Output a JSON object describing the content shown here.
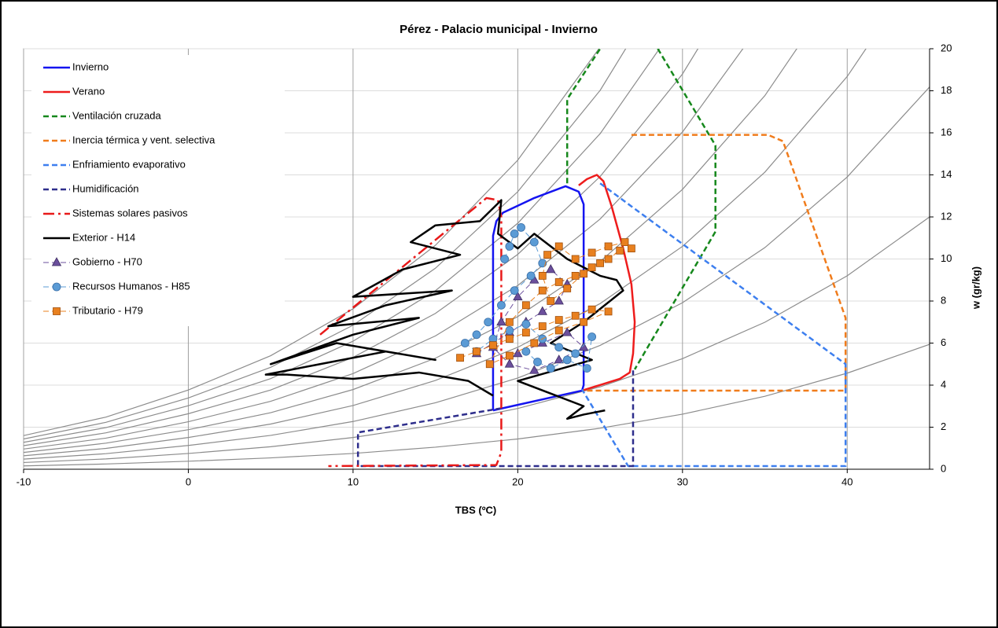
{
  "chart_data": {
    "type": "line",
    "title": "Pérez - Palacio municipal - Invierno",
    "x_label": "TBS (ºC)",
    "y_label": "w (gr/kg)",
    "xlim": [
      -10,
      45
    ],
    "xticks": [
      -10,
      0,
      10,
      20,
      30,
      40
    ],
    "ylim": [
      0,
      20
    ],
    "yticks": [
      0,
      2,
      4,
      6,
      8,
      10,
      12,
      14,
      16,
      18,
      20
    ],
    "grid": true,
    "legend": "upper left",
    "rh_curves": {
      "color": "#8c8c8c",
      "x": [
        -10,
        -5,
        0,
        5,
        10,
        15,
        20,
        25,
        30,
        35,
        40,
        45
      ],
      "values": [
        [
          0.16,
          0.25,
          0.38,
          0.54,
          0.75,
          1.05,
          1.44,
          1.95,
          2.62,
          3.47,
          4.57,
          5.94
        ],
        [
          0.32,
          0.49,
          0.75,
          1.07,
          1.51,
          2.1,
          2.89,
          3.92,
          5.26,
          6.99,
          9.2,
          12.0
        ],
        [
          0.48,
          0.74,
          1.13,
          1.61,
          2.27,
          3.16,
          4.34,
          5.89,
          7.92,
          10.54,
          13.9,
          18.18
        ],
        [
          0.64,
          0.99,
          1.51,
          2.15,
          3.03,
          4.22,
          5.8,
          7.88,
          10.6,
          14.13,
          18.68,
          24.48
        ],
        [
          0.8,
          1.24,
          1.88,
          2.69,
          3.79,
          5.28,
          7.26,
          9.88,
          13.31,
          17.77,
          23.52,
          null
        ],
        [
          0.96,
          1.48,
          2.26,
          3.23,
          4.55,
          6.34,
          8.74,
          11.9,
          16.04,
          21.44,
          null,
          null
        ],
        [
          1.12,
          1.73,
          2.64,
          3.77,
          5.32,
          7.41,
          10.22,
          13.92,
          18.8,
          25.2,
          null,
          null
        ],
        [
          1.28,
          1.98,
          3.02,
          4.31,
          6.09,
          8.49,
          11.7,
          15.96,
          21.57,
          null,
          null,
          null
        ],
        [
          1.44,
          2.23,
          3.39,
          4.85,
          6.85,
          9.56,
          13.2,
          18.02,
          24.4,
          null,
          null,
          null
        ],
        [
          1.6,
          2.48,
          3.77,
          5.4,
          7.63,
          10.65,
          14.7,
          20.08,
          null,
          null,
          null,
          null
        ]
      ]
    },
    "series": [
      {
        "name": "Invierno",
        "color": "#1414f0",
        "dash": "solid",
        "x": [
          18.5,
          18.5,
          18.7,
          19.1,
          21,
          22.9,
          23.7,
          24,
          24,
          23.9,
          18.5
        ],
        "values": [
          2.8,
          11.1,
          11.8,
          12.2,
          12.9,
          13.46,
          13.2,
          12.6,
          4.0,
          3.74,
          2.8
        ]
      },
      {
        "name": "Verano",
        "color": "#ee1c1c",
        "dash": "solid",
        "x": [
          23.9,
          26.2,
          26.8,
          27.0,
          27.1,
          26.9,
          26.4,
          25.7,
          25.2,
          24.8,
          24.2,
          23.7
        ],
        "values": [
          3.74,
          4.3,
          4.6,
          5.5,
          7.0,
          8.8,
          10.5,
          12.5,
          13.7,
          14.0,
          13.8,
          13.5
        ]
      },
      {
        "name": "Ventilación cruzada",
        "color": "#16881c",
        "dash": "dashed",
        "x": [
          23.0,
          23.0,
          25.0,
          null,
          28.5,
          32,
          32,
          27.1
        ],
        "values": [
          13.6,
          17.6,
          20,
          null,
          20,
          15.4,
          11.3,
          4.75
        ]
      },
      {
        "name": "Inercia térmica y vent. selectiva",
        "color": "#f07c1c",
        "dash": "dashed",
        "x": [
          26.9,
          35.2,
          36.1,
          39.9,
          39.9,
          23.9
        ],
        "values": [
          15.9,
          15.9,
          15.6,
          7.2,
          3.74,
          3.74
        ]
      },
      {
        "name": "Enfriamiento evaporativo",
        "color": "#3d7fef",
        "dash": "dashed",
        "x": [
          25.0,
          39.9,
          39.9,
          26.7,
          23.9
        ],
        "values": [
          13.6,
          5.0,
          0.15,
          0.15,
          3.8
        ]
      },
      {
        "name": "Humidificación",
        "color": "#2e2e8c",
        "dash": "dashed",
        "x": [
          19.0,
          10.3,
          10.3,
          27.0,
          27.0
        ],
        "values": [
          2.9,
          1.75,
          0.15,
          0.15,
          4.7
        ]
      },
      {
        "name": "Sistemas solares pasivos",
        "color": "#e81919",
        "dash": "dashdot",
        "x": [
          8.0,
          18.1,
          18.8,
          19.0,
          19.0,
          18.7,
          8.5
        ],
        "values": [
          6.4,
          12.9,
          12.8,
          12.0,
          0.8,
          0.2,
          0.15
        ]
      },
      {
        "name": "Exterior - H14",
        "color": "#000000",
        "dash": "solid",
        "x": [
          18.5,
          17,
          14,
          10,
          6,
          4.7,
          8,
          12,
          15,
          9,
          5,
          10,
          14,
          8.5,
          12,
          16,
          10,
          13,
          16.5,
          13.5,
          15,
          17.7,
          19,
          18.8,
          20,
          21,
          23,
          25,
          26,
          26.4,
          24,
          22,
          24.5,
          20,
          22,
          24,
          23,
          24,
          25.3
        ],
        "values": [
          3.5,
          4.2,
          4.6,
          4.3,
          4.5,
          4.5,
          5.0,
          5.6,
          5.2,
          6.0,
          5.0,
          6.4,
          7.2,
          6.8,
          7.8,
          8.5,
          8.2,
          9.5,
          10.2,
          10.8,
          11.6,
          11.8,
          12.8,
          11.2,
          10.5,
          11.2,
          10.0,
          9.2,
          9.0,
          8.5,
          7.0,
          6.0,
          5.2,
          4.2,
          3.6,
          3.0,
          2.4,
          2.6,
          2.8
        ]
      },
      {
        "name": "Gobierno - H70",
        "color": "#6b4f9c",
        "dash": "dashed",
        "marker": "triangle",
        "x": [
          17.5,
          18.5,
          19.5,
          20.5,
          21.5,
          22.5,
          23,
          22,
          21,
          20,
          19,
          18.5,
          19.5,
          21,
          22.5,
          24,
          23,
          21.5,
          20
        ],
        "values": [
          5.5,
          6.0,
          6.5,
          7.0,
          7.5,
          8.0,
          8.8,
          9.5,
          9.0,
          8.2,
          7.0,
          5.8,
          5.0,
          4.7,
          5.2,
          5.8,
          6.5,
          6.0,
          5.5
        ]
      },
      {
        "name": "Recursos Humanos - H85",
        "color": "#5b9bd5",
        "dash": "dashed",
        "marker": "circle",
        "x": [
          19.2,
          19.5,
          19.8,
          20.2,
          21.0,
          21.5,
          20.8,
          19.8,
          19.0,
          18.2,
          17.5,
          16.8,
          17.5,
          18.5,
          19.5,
          20.5,
          21.5,
          22.5,
          23.5,
          24.5,
          24.2,
          23.0,
          22.0,
          21.2,
          20.5
        ],
        "values": [
          10.0,
          10.6,
          11.2,
          11.5,
          10.8,
          9.8,
          9.2,
          8.5,
          7.8,
          7.0,
          6.4,
          6.0,
          5.6,
          6.2,
          6.6,
          6.9,
          6.2,
          5.8,
          5.5,
          6.3,
          4.8,
          5.2,
          4.8,
          5.1,
          5.6
        ]
      },
      {
        "name": "Tributario - H79",
        "color": "#e8801f",
        "dash": "dashed",
        "marker": "square",
        "x": [
          16.5,
          17.5,
          18.5,
          19.5,
          20.5,
          21.5,
          22.5,
          23.5,
          24.5,
          25.5,
          24,
          22.5,
          21,
          19.5,
          18.3,
          19.5,
          20.5,
          21.5,
          22.5,
          23.5,
          24.5,
          25.5,
          26.2,
          25,
          24,
          23,
          22,
          21.5,
          21.8,
          22.5,
          23.5,
          24.5,
          25.5,
          26.5,
          26.9
        ],
        "values": [
          5.3,
          5.6,
          5.9,
          6.2,
          6.5,
          6.8,
          7.1,
          7.3,
          7.6,
          7.5,
          7.0,
          6.6,
          6.0,
          5.4,
          5.0,
          7.0,
          7.8,
          8.5,
          8.9,
          9.2,
          9.6,
          10.0,
          10.4,
          9.8,
          9.3,
          8.6,
          8.0,
          9.2,
          10.2,
          10.6,
          10.0,
          10.3,
          10.6,
          10.8,
          10.5
        ]
      }
    ]
  }
}
